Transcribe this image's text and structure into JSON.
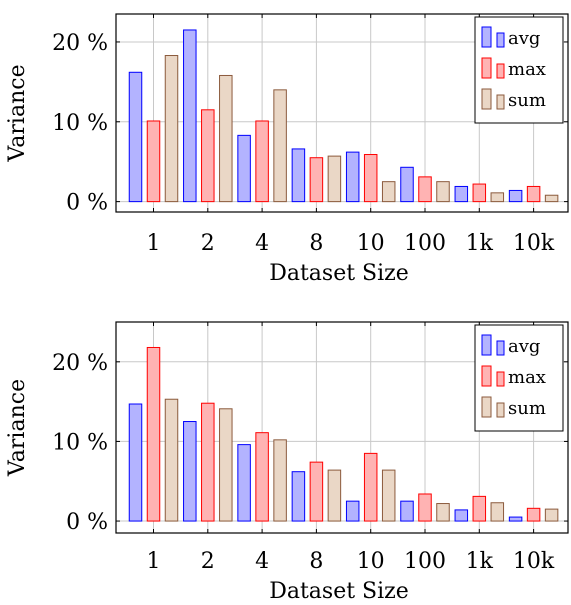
{
  "chart_data": [
    {
      "type": "bar",
      "title": "",
      "xlabel": "Dataset Size",
      "ylabel": "Variance",
      "categories": [
        "1",
        "2",
        "4",
        "8",
        "10",
        "100",
        "1k",
        "10k"
      ],
      "y_ticks": [
        "0 %",
        "10 %",
        "20 %"
      ],
      "y_tick_values": [
        0,
        10,
        20
      ],
      "ylim": [
        -1.3,
        23.5
      ],
      "grid": true,
      "legend_position": "top-right",
      "series": [
        {
          "name": "avg",
          "values": [
            16.2,
            21.5,
            8.3,
            6.6,
            6.2,
            4.3,
            1.9,
            1.4
          ]
        },
        {
          "name": "max",
          "values": [
            10.1,
            11.5,
            10.1,
            5.5,
            5.9,
            3.1,
            2.2,
            1.9
          ]
        },
        {
          "name": "sum",
          "values": [
            18.3,
            15.8,
            14.0,
            5.7,
            2.5,
            2.5,
            1.1,
            0.8
          ]
        }
      ]
    },
    {
      "type": "bar",
      "title": "",
      "xlabel": "Dataset Size",
      "ylabel": "Variance",
      "categories": [
        "1",
        "2",
        "4",
        "8",
        "10",
        "100",
        "1k",
        "10k"
      ],
      "y_ticks": [
        "0 %",
        "10 %",
        "20 %"
      ],
      "y_tick_values": [
        0,
        10,
        20
      ],
      "ylim": [
        -1.5,
        25.0
      ],
      "grid": true,
      "legend_position": "top-right",
      "series": [
        {
          "name": "avg",
          "values": [
            14.7,
            12.5,
            9.6,
            6.2,
            2.5,
            2.5,
            1.4,
            0.5
          ]
        },
        {
          "name": "max",
          "values": [
            21.8,
            14.8,
            11.1,
            7.4,
            8.5,
            3.4,
            3.1,
            1.6
          ]
        },
        {
          "name": "sum",
          "values": [
            15.3,
            14.1,
            10.2,
            6.4,
            6.4,
            2.2,
            2.3,
            1.5
          ]
        }
      ]
    }
  ],
  "colors": {
    "avg": {
      "fill": "#b3b3ff",
      "stroke": "#0000ff"
    },
    "max": {
      "fill": "#ffb3b3",
      "stroke": "#ff0000"
    },
    "sum": {
      "fill": "#ead7c6",
      "stroke": "#8b5a3c"
    }
  }
}
